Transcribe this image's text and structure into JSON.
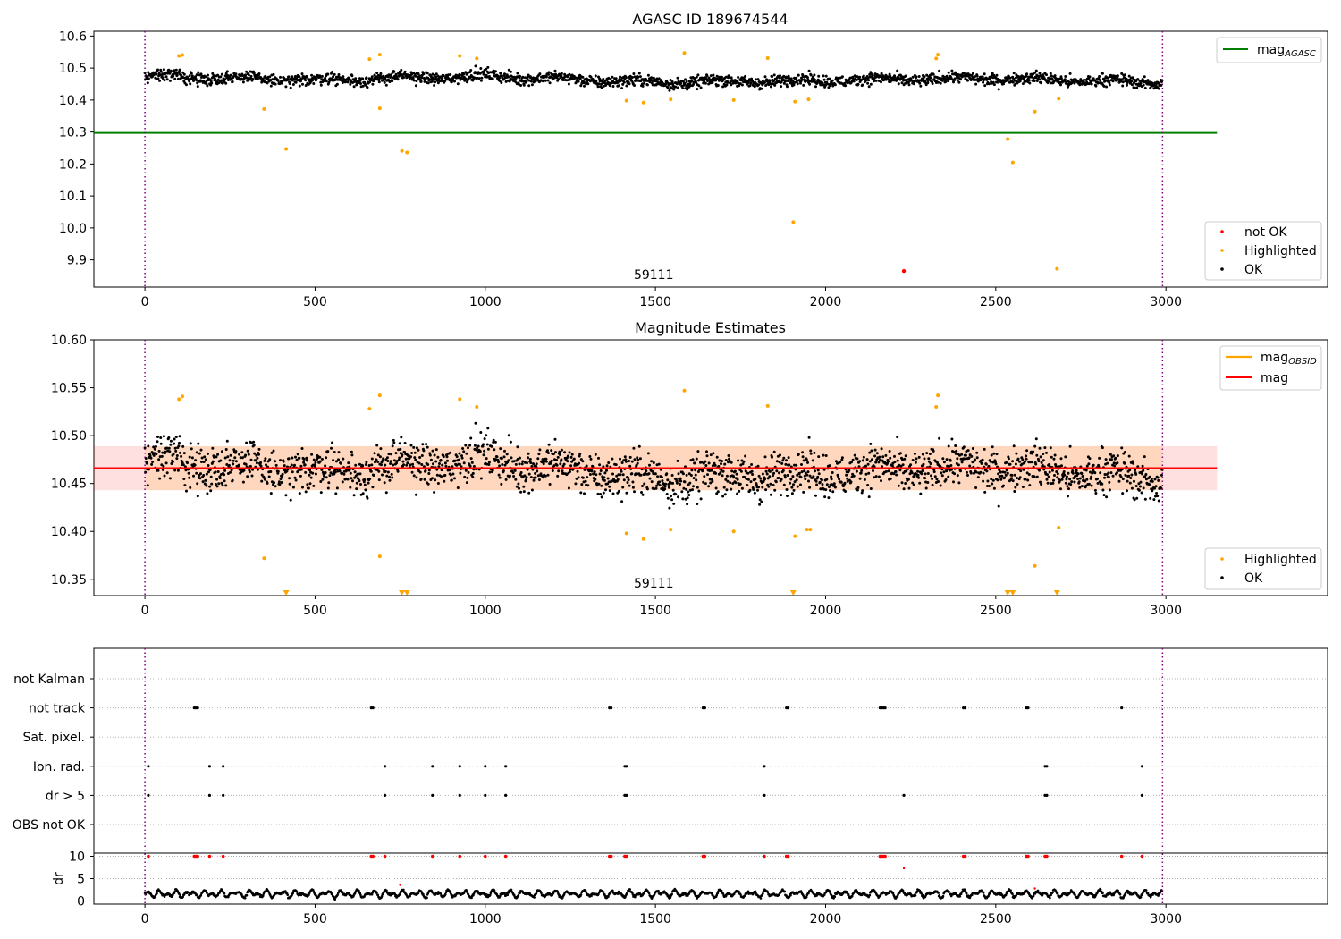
{
  "chart_data": [
    {
      "type": "scatter",
      "title": "AGASC ID 189674544",
      "xticks": [
        0,
        500,
        1000,
        1500,
        2000,
        2500,
        3000
      ],
      "ylim": [
        9.815,
        10.615
      ],
      "yticks": [
        9.9,
        10.0,
        10.1,
        10.2,
        10.3,
        10.4,
        10.5,
        10.6
      ],
      "ytick_labels": [
        "9.9",
        "10.0",
        "10.1",
        "10.2",
        "10.3",
        "10.4",
        "10.5",
        "10.6"
      ],
      "reference_line": {
        "y": 10.297,
        "name": "mag",
        "name_sub": "AGASC",
        "color": "#008000"
      },
      "obs_boundaries": [
        0,
        2990
      ],
      "obs_label": {
        "text": "59111",
        "x": 1495
      },
      "legend_main": {
        "placement": "top-right"
      },
      "legend_points": {
        "placement": "bottom-right",
        "entries": [
          {
            "name": "not OK",
            "color": "#ff0000"
          },
          {
            "name": "Highlighted",
            "color": "#ffa500"
          },
          {
            "name": "OK",
            "color": "#000000"
          }
        ]
      },
      "ok_trend": {
        "x": [
          0,
          500,
          1000,
          1500,
          2000,
          2500,
          3000
        ],
        "y": [
          10.475,
          10.462,
          10.475,
          10.455,
          10.462,
          10.468,
          10.455
        ],
        "spread": 0.018
      },
      "highlighted": [
        {
          "x": 100,
          "y": 10.538
        },
        {
          "x": 110,
          "y": 10.541
        },
        {
          "x": 350,
          "y": 10.372
        },
        {
          "x": 415,
          "y": 10.247
        },
        {
          "x": 660,
          "y": 10.528
        },
        {
          "x": 690,
          "y": 10.542
        },
        {
          "x": 690,
          "y": 10.374
        },
        {
          "x": 755,
          "y": 10.241
        },
        {
          "x": 770,
          "y": 10.236
        },
        {
          "x": 925,
          "y": 10.538
        },
        {
          "x": 975,
          "y": 10.53
        },
        {
          "x": 1415,
          "y": 10.398
        },
        {
          "x": 1465,
          "y": 10.392
        },
        {
          "x": 1545,
          "y": 10.402
        },
        {
          "x": 1585,
          "y": 10.547
        },
        {
          "x": 1730,
          "y": 10.4
        },
        {
          "x": 1830,
          "y": 10.531
        },
        {
          "x": 1905,
          "y": 10.018
        },
        {
          "x": 1910,
          "y": 10.395
        },
        {
          "x": 1950,
          "y": 10.402
        },
        {
          "x": 2325,
          "y": 10.53
        },
        {
          "x": 2330,
          "y": 10.542
        },
        {
          "x": 2535,
          "y": 10.278
        },
        {
          "x": 2550,
          "y": 10.205
        },
        {
          "x": 2615,
          "y": 10.364
        },
        {
          "x": 2680,
          "y": 9.872
        },
        {
          "x": 2685,
          "y": 10.404
        }
      ],
      "not_ok": [
        {
          "x": 2230,
          "y": 9.865
        }
      ]
    },
    {
      "type": "scatter",
      "title": "Magnitude Estimates",
      "xticks": [
        0,
        500,
        1000,
        1500,
        2000,
        2500,
        3000
      ],
      "ylim": [
        10.333,
        10.6
      ],
      "yticks": [
        10.35,
        10.4,
        10.45,
        10.5,
        10.55,
        10.6
      ],
      "ytick_labels": [
        "10.35",
        "10.40",
        "10.45",
        "10.50",
        "10.55",
        "10.60"
      ],
      "mag_line": {
        "y": 10.466,
        "name": "mag",
        "color": "#ff0000"
      },
      "mag_band": [
        10.443,
        10.489
      ],
      "obsid_line": {
        "name": "mag",
        "name_sub": "OBSID",
        "color": "#ffa500",
        "y": 10.466
      },
      "obs_boundaries": [
        0,
        2990
      ],
      "obs_label": {
        "text": "59111",
        "x": 1495
      },
      "legend_main": {
        "placement": "top-right"
      },
      "legend_points": {
        "placement": "bottom-right",
        "entries": [
          {
            "name": "Highlighted",
            "color": "#ffa500"
          },
          {
            "name": "OK",
            "color": "#000000"
          }
        ]
      },
      "ok_trend": {
        "x": [
          0,
          500,
          1000,
          1500,
          2000,
          2500,
          3000
        ],
        "y": [
          10.475,
          10.462,
          10.475,
          10.455,
          10.462,
          10.468,
          10.455
        ],
        "spread": 0.018
      },
      "highlighted": [
        {
          "x": 100,
          "y": 10.538
        },
        {
          "x": 110,
          "y": 10.541
        },
        {
          "x": 350,
          "y": 10.372
        },
        {
          "x": 660,
          "y": 10.528
        },
        {
          "x": 690,
          "y": 10.542
        },
        {
          "x": 690,
          "y": 10.374
        },
        {
          "x": 925,
          "y": 10.538
        },
        {
          "x": 975,
          "y": 10.53
        },
        {
          "x": 1415,
          "y": 10.398
        },
        {
          "x": 1465,
          "y": 10.392
        },
        {
          "x": 1545,
          "y": 10.402
        },
        {
          "x": 1585,
          "y": 10.547
        },
        {
          "x": 1730,
          "y": 10.4
        },
        {
          "x": 1830,
          "y": 10.531
        },
        {
          "x": 1910,
          "y": 10.395
        },
        {
          "x": 1945,
          "y": 10.402
        },
        {
          "x": 1955,
          "y": 10.402
        },
        {
          "x": 2325,
          "y": 10.53
        },
        {
          "x": 2330,
          "y": 10.542
        },
        {
          "x": 2615,
          "y": 10.364
        },
        {
          "x": 2685,
          "y": 10.404
        }
      ],
      "below_range": [
        415,
        755,
        770,
        1905,
        2535,
        2550,
        2680
      ]
    },
    {
      "type": "scatter",
      "title": "",
      "xticks": [
        0,
        500,
        1000,
        1500,
        2000,
        2500,
        3000
      ],
      "flag_rows": [
        "not Kalman",
        "not track",
        "Sat. pixel.",
        "Ion. rad.",
        "dr > 5",
        "OBS not OK"
      ],
      "flags": {
        "not track": [
          145,
          150,
          155,
          665,
          670,
          1365,
          1370,
          1640,
          1645,
          1885,
          1890,
          2160,
          2165,
          2170,
          2175,
          2405,
          2410,
          2590,
          2595,
          2870
        ],
        "Ion. rad.": [
          10,
          190,
          230,
          705,
          845,
          925,
          1000,
          1060,
          1410,
          1415,
          1820,
          2645,
          2650,
          2930
        ],
        "dr > 5": [
          10,
          190,
          230,
          705,
          845,
          925,
          1000,
          1060,
          1410,
          1415,
          1820,
          2230,
          2645,
          2650,
          2930
        ]
      },
      "dr_ylabel": "dr",
      "dr_yticks": [
        0,
        5,
        10
      ],
      "dr_ylim": [
        -0.5,
        10.5
      ],
      "dr_spikes": [
        10,
        145,
        150,
        155,
        190,
        230,
        665,
        670,
        705,
        845,
        925,
        1000,
        1060,
        1365,
        1370,
        1410,
        1415,
        1640,
        1645,
        1820,
        1885,
        1890,
        2160,
        2165,
        2170,
        2175,
        2405,
        2410,
        2590,
        2595,
        2645,
        2650,
        2870,
        2930
      ],
      "dr_outliers": [
        {
          "x": 750,
          "y": 3.6
        },
        {
          "x": 2230,
          "y": 7.3
        },
        {
          "x": 2615,
          "y": 2.8
        }
      ],
      "obs_boundaries": [
        0,
        2990
      ]
    }
  ]
}
